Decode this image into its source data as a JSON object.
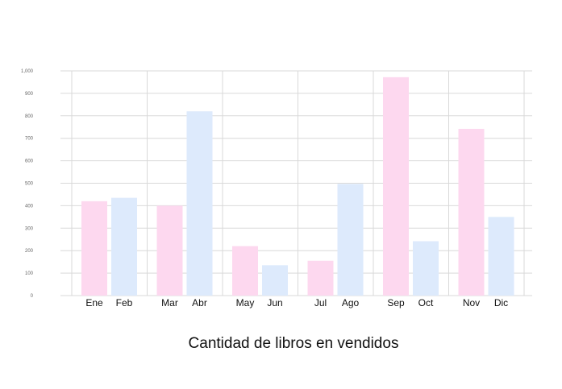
{
  "chart_data": {
    "type": "bar",
    "title": "Cantidad de libros en vendidos",
    "xlabel": "",
    "ylabel": "",
    "ylim": [
      0,
      1000
    ],
    "yticks": [
      0,
      100,
      200,
      300,
      400,
      500,
      600,
      700,
      800,
      900,
      1000
    ],
    "ytick_labels": [
      "0",
      "100",
      "200",
      "300",
      "400",
      "500",
      "600",
      "700",
      "800",
      "900",
      "1,000"
    ],
    "categories": [
      "Ene",
      "Feb",
      "Mar",
      "Abr",
      "May",
      "Jun",
      "Jul",
      "Ago",
      "Sep",
      "Oct",
      "Nov",
      "Dic"
    ],
    "values": [
      420,
      435,
      400,
      820,
      220,
      135,
      155,
      497,
      972,
      242,
      742,
      350
    ],
    "colors": [
      "#fdd8ef",
      "#ddeafc"
    ],
    "grid": true,
    "legend": "none"
  }
}
